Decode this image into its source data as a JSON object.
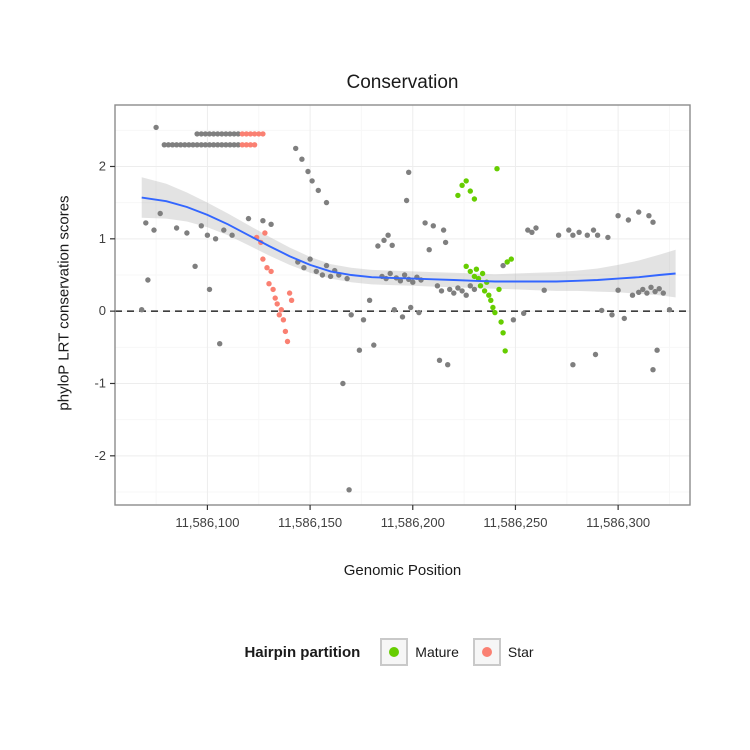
{
  "title": "Conservation",
  "legend": {
    "title": "Hairpin partition",
    "items": [
      {
        "label": "Mature",
        "color": "#66CD00"
      },
      {
        "label": "Star",
        "color": "#FA8072"
      }
    ]
  },
  "colors": {
    "other_points": "#7F7F7F",
    "smooth_line": "#3366FF",
    "ci_band": "#999999",
    "panel_border": "#8C8C8C",
    "grid_major": "#ededed",
    "grid_minor": "#f7f7f7",
    "hline": "#000000"
  },
  "chart_data": {
    "type": "scatter",
    "title": "Conservation",
    "xlabel": "Genomic Position",
    "ylabel": "phyloP LRT conservation scores",
    "xlim": [
      11586055,
      11586335
    ],
    "ylim": [
      -2.68,
      2.85
    ],
    "x_ticks": [
      {
        "value": 11586100,
        "label": "11,586,100"
      },
      {
        "value": 11586150,
        "label": "11,586,150"
      },
      {
        "value": 11586200,
        "label": "11,586,200"
      },
      {
        "value": 11586250,
        "label": "11,586,250"
      },
      {
        "value": 11586300,
        "label": "11,586,300"
      }
    ],
    "y_ticks": [
      {
        "value": -2,
        "label": "-2"
      },
      {
        "value": -1,
        "label": "-1"
      },
      {
        "value": 0,
        "label": "0"
      },
      {
        "value": 1,
        "label": "1"
      },
      {
        "value": 2,
        "label": "2"
      }
    ],
    "x_minor": [
      11586075,
      11586125,
      11586175,
      11586225,
      11586275,
      11586325
    ],
    "y_minor": [
      -2.5,
      -1.5,
      -0.5,
      0.5,
      1.5,
      2.5
    ],
    "hline": {
      "y": 0,
      "style": "dashed",
      "color": "#000000"
    },
    "smooth": {
      "color": "#3366FF",
      "band_color": "#999999",
      "points": [
        [
          11586068,
          1.57,
          1.29,
          1.85
        ],
        [
          11586080,
          1.52,
          1.28,
          1.76
        ],
        [
          11586090,
          1.44,
          1.24,
          1.64
        ],
        [
          11586100,
          1.33,
          1.16,
          1.5
        ],
        [
          11586110,
          1.2,
          1.05,
          1.35
        ],
        [
          11586120,
          1.05,
          0.91,
          1.19
        ],
        [
          11586130,
          0.9,
          0.77,
          1.03
        ],
        [
          11586140,
          0.76,
          0.64,
          0.88
        ],
        [
          11586150,
          0.64,
          0.53,
          0.75
        ],
        [
          11586160,
          0.55,
          0.45,
          0.65
        ],
        [
          11586170,
          0.5,
          0.4,
          0.6
        ],
        [
          11586180,
          0.47,
          0.37,
          0.57
        ],
        [
          11586190,
          0.46,
          0.36,
          0.56
        ],
        [
          11586200,
          0.45,
          0.35,
          0.55
        ],
        [
          11586210,
          0.44,
          0.34,
          0.54
        ],
        [
          11586220,
          0.43,
          0.33,
          0.53
        ],
        [
          11586230,
          0.42,
          0.32,
          0.52
        ],
        [
          11586240,
          0.41,
          0.31,
          0.51
        ],
        [
          11586250,
          0.41,
          0.3,
          0.52
        ],
        [
          11586260,
          0.41,
          0.29,
          0.53
        ],
        [
          11586270,
          0.41,
          0.28,
          0.54
        ],
        [
          11586280,
          0.42,
          0.28,
          0.56
        ],
        [
          11586290,
          0.43,
          0.27,
          0.59
        ],
        [
          11586300,
          0.45,
          0.26,
          0.64
        ],
        [
          11586310,
          0.47,
          0.24,
          0.7
        ],
        [
          11586320,
          0.5,
          0.22,
          0.78
        ],
        [
          11586328,
          0.52,
          0.19,
          0.85
        ]
      ]
    },
    "series": [
      {
        "name": "Other",
        "color": "#7F7F7F",
        "points": [
          [
            11586095,
            2.45
          ],
          [
            11586097,
            2.45
          ],
          [
            11586099,
            2.45
          ],
          [
            11586101,
            2.45
          ],
          [
            11586103,
            2.45
          ],
          [
            11586105,
            2.45
          ],
          [
            11586107,
            2.45
          ],
          [
            11586109,
            2.45
          ],
          [
            11586111,
            2.45
          ],
          [
            11586113,
            2.45
          ],
          [
            11586115,
            2.45
          ],
          [
            11586079,
            2.3
          ],
          [
            11586081,
            2.3
          ],
          [
            11586083,
            2.3
          ],
          [
            11586085,
            2.3
          ],
          [
            11586087,
            2.3
          ],
          [
            11586089,
            2.3
          ],
          [
            11586091,
            2.3
          ],
          [
            11586093,
            2.3
          ],
          [
            11586095,
            2.3
          ],
          [
            11586097,
            2.3
          ],
          [
            11586099,
            2.3
          ],
          [
            11586101,
            2.3
          ],
          [
            11586103,
            2.3
          ],
          [
            11586105,
            2.3
          ],
          [
            11586107,
            2.3
          ],
          [
            11586109,
            2.3
          ],
          [
            11586111,
            2.3
          ],
          [
            11586113,
            2.3
          ],
          [
            11586115,
            2.3
          ],
          [
            11586068,
            0.02
          ],
          [
            11586070,
            1.22
          ],
          [
            11586071,
            0.43
          ],
          [
            11586074,
            1.12
          ],
          [
            11586075,
            2.54
          ],
          [
            11586077,
            1.35
          ],
          [
            11586085,
            1.15
          ],
          [
            11586090,
            1.08
          ],
          [
            11586094,
            0.62
          ],
          [
            11586097,
            1.18
          ],
          [
            11586100,
            1.05
          ],
          [
            11586101,
            0.3
          ],
          [
            11586104,
            1.0
          ],
          [
            11586106,
            -0.45
          ],
          [
            11586108,
            1.12
          ],
          [
            11586112,
            1.05
          ],
          [
            11586120,
            1.28
          ],
          [
            11586127,
            1.25
          ],
          [
            11586131,
            1.2
          ],
          [
            11586143,
            2.25
          ],
          [
            11586146,
            2.1
          ],
          [
            11586149,
            1.93
          ],
          [
            11586151,
            1.8
          ],
          [
            11586154,
            1.67
          ],
          [
            11586158,
            1.5
          ],
          [
            11586144,
            0.68
          ],
          [
            11586147,
            0.6
          ],
          [
            11586150,
            0.72
          ],
          [
            11586153,
            0.55
          ],
          [
            11586156,
            0.5
          ],
          [
            11586158,
            0.63
          ],
          [
            11586160,
            0.48
          ],
          [
            11586162,
            0.56
          ],
          [
            11586164,
            0.5
          ],
          [
            11586168,
            0.45
          ],
          [
            11586166,
            -1.0
          ],
          [
            11586169,
            -2.47
          ],
          [
            11586170,
            -0.05
          ],
          [
            11586174,
            -0.54
          ],
          [
            11586176,
            -0.12
          ],
          [
            11586179,
            0.15
          ],
          [
            11586181,
            -0.47
          ],
          [
            11586183,
            0.9
          ],
          [
            11586186,
            0.98
          ],
          [
            11586188,
            1.05
          ],
          [
            11586190,
            0.91
          ],
          [
            11586185,
            0.48
          ],
          [
            11586187,
            0.45
          ],
          [
            11586189,
            0.52
          ],
          [
            11586192,
            0.46
          ],
          [
            11586194,
            0.42
          ],
          [
            11586196,
            0.5
          ],
          [
            11586197,
            1.53
          ],
          [
            11586198,
            1.92
          ],
          [
            11586198,
            0.44
          ],
          [
            11586200,
            0.4
          ],
          [
            11586202,
            0.47
          ],
          [
            11586204,
            0.43
          ],
          [
            11586191,
            0.02
          ],
          [
            11586195,
            -0.08
          ],
          [
            11586199,
            0.05
          ],
          [
            11586203,
            -0.02
          ],
          [
            11586206,
            1.22
          ],
          [
            11586208,
            0.85
          ],
          [
            11586210,
            1.18
          ],
          [
            11586212,
            0.35
          ],
          [
            11586213,
            -0.68
          ],
          [
            11586214,
            0.28
          ],
          [
            11586215,
            1.12
          ],
          [
            11586216,
            0.95
          ],
          [
            11586217,
            -0.74
          ],
          [
            11586218,
            0.3
          ],
          [
            11586220,
            0.25
          ],
          [
            11586222,
            0.32
          ],
          [
            11586224,
            0.28
          ],
          [
            11586226,
            0.22
          ],
          [
            11586228,
            0.35
          ],
          [
            11586230,
            0.3
          ],
          [
            11586244,
            0.63
          ],
          [
            11586249,
            -0.12
          ],
          [
            11586254,
            -0.03
          ],
          [
            11586256,
            1.12
          ],
          [
            11586258,
            1.09
          ],
          [
            11586260,
            1.15
          ],
          [
            11586264,
            0.29
          ],
          [
            11586271,
            1.05
          ],
          [
            11586276,
            1.12
          ],
          [
            11586278,
            1.05
          ],
          [
            11586278,
            -0.74
          ],
          [
            11586281,
            1.09
          ],
          [
            11586285,
            1.05
          ],
          [
            11586288,
            1.12
          ],
          [
            11586289,
            -0.6
          ],
          [
            11586290,
            1.05
          ],
          [
            11586292,
            0.01
          ],
          [
            11586295,
            1.02
          ],
          [
            11586297,
            -0.05
          ],
          [
            11586300,
            1.32
          ],
          [
            11586300,
            0.29
          ],
          [
            11586303,
            -0.1
          ],
          [
            11586305,
            1.26
          ],
          [
            11586307,
            0.22
          ],
          [
            11586310,
            1.37
          ],
          [
            11586310,
            0.26
          ],
          [
            11586312,
            0.3
          ],
          [
            11586314,
            0.25
          ],
          [
            11586315,
            1.32
          ],
          [
            11586316,
            0.33
          ],
          [
            11586317,
            1.23
          ],
          [
            11586317,
            -0.81
          ],
          [
            11586318,
            0.27
          ],
          [
            11586319,
            -0.54
          ],
          [
            11586320,
            0.31
          ],
          [
            11586322,
            0.25
          ],
          [
            11586325,
            0.02
          ]
        ]
      },
      {
        "name": "Star",
        "color": "#FA8072",
        "points": [
          [
            11586117,
            2.45
          ],
          [
            11586119,
            2.45
          ],
          [
            11586121,
            2.45
          ],
          [
            11586123,
            2.45
          ],
          [
            11586125,
            2.45
          ],
          [
            11586127,
            2.45
          ],
          [
            11586117,
            2.3
          ],
          [
            11586119,
            2.3
          ],
          [
            11586121,
            2.3
          ],
          [
            11586123,
            2.3
          ],
          [
            11586124,
            1.02
          ],
          [
            11586126,
            0.95
          ],
          [
            11586128,
            1.08
          ],
          [
            11586127,
            0.72
          ],
          [
            11586129,
            0.6
          ],
          [
            11586131,
            0.55
          ],
          [
            11586130,
            0.38
          ],
          [
            11586132,
            0.3
          ],
          [
            11586133,
            0.18
          ],
          [
            11586134,
            0.1
          ],
          [
            11586135,
            -0.05
          ],
          [
            11586136,
            0.02
          ],
          [
            11586137,
            -0.12
          ],
          [
            11586138,
            -0.28
          ],
          [
            11586139,
            -0.42
          ],
          [
            11586140,
            0.25
          ],
          [
            11586141,
            0.15
          ]
        ]
      },
      {
        "name": "Mature",
        "color": "#66CD00",
        "points": [
          [
            11586222,
            1.6
          ],
          [
            11586224,
            1.74
          ],
          [
            11586226,
            1.8
          ],
          [
            11586228,
            1.66
          ],
          [
            11586230,
            1.55
          ],
          [
            11586241,
            1.97
          ],
          [
            11586226,
            0.62
          ],
          [
            11586228,
            0.55
          ],
          [
            11586230,
            0.48
          ],
          [
            11586231,
            0.58
          ],
          [
            11586232,
            0.45
          ],
          [
            11586233,
            0.35
          ],
          [
            11586234,
            0.52
          ],
          [
            11586235,
            0.28
          ],
          [
            11586236,
            0.4
          ],
          [
            11586237,
            0.22
          ],
          [
            11586238,
            0.15
          ],
          [
            11586239,
            0.05
          ],
          [
            11586240,
            -0.02
          ],
          [
            11586242,
            0.3
          ],
          [
            11586243,
            -0.15
          ],
          [
            11586244,
            -0.3
          ],
          [
            11586245,
            -0.55
          ],
          [
            11586246,
            0.68
          ],
          [
            11586248,
            0.72
          ]
        ]
      }
    ]
  }
}
